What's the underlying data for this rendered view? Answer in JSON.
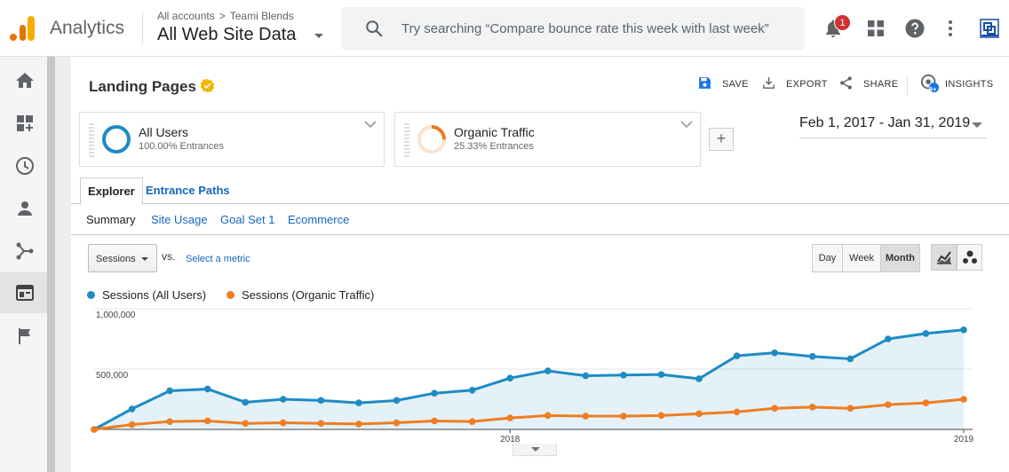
{
  "topbar": {
    "app_name": "Analytics",
    "breadcrumb": [
      "All accounts",
      "Teami Blends"
    ],
    "breadcrumb_sep": ">",
    "view_name": "All Web Site Data",
    "search_placeholder": "Try searching “Compare bounce rate this week with last week”",
    "notification_count": "1",
    "icons": [
      "search-icon",
      "bell-icon",
      "apps-grid-icon",
      "help-icon",
      "more-vert-icon",
      "account-icon"
    ],
    "brand_color": "#f9ab00"
  },
  "left_rail": {
    "items": [
      "home",
      "customization",
      "realtime",
      "audience",
      "acquisition",
      "behavior",
      "conversions"
    ],
    "active": "behavior"
  },
  "report": {
    "title": "Landing Pages",
    "actions": [
      {
        "label": "SAVE",
        "icon": "save-icon"
      },
      {
        "label": "EXPORT",
        "icon": "export-icon"
      },
      {
        "label": "SHARE",
        "icon": "share-icon"
      },
      {
        "label": "INSIGHTS",
        "icon": "insights-icon"
      }
    ],
    "insights_badge": "9+",
    "segments": [
      {
        "name": "All Users",
        "subtitle": "100.00% Entrances",
        "color": "#1e8bc3",
        "fraction": 1.0
      },
      {
        "name": "Organic Traffic",
        "subtitle": "25.33% Entrances",
        "color": "#ef7d22",
        "fraction": 0.2533
      }
    ],
    "add_segment_label": "+",
    "date_range": "Feb 1, 2017 - Jan 31, 2019",
    "tabs": [
      "Explorer",
      "Entrance Paths"
    ],
    "active_tab": "Explorer",
    "subtabs": [
      "Summary",
      "Site Usage",
      "Goal Set 1",
      "Ecommerce"
    ],
    "active_subtab": "Summary",
    "metric_selector": "Sessions",
    "vs_label": "vs.",
    "select_metric": "Select a metric",
    "granularity": [
      "Day",
      "Week",
      "Month"
    ],
    "active_granularity": "Month"
  },
  "chart_data": {
    "type": "line",
    "x": [
      "2017-02",
      "2017-03",
      "2017-04",
      "2017-05",
      "2017-06",
      "2017-07",
      "2017-08",
      "2017-09",
      "2017-10",
      "2017-11",
      "2017-12",
      "2018-01",
      "2018-02",
      "2018-03",
      "2018-04",
      "2018-05",
      "2018-06",
      "2018-07",
      "2018-08",
      "2018-09",
      "2018-10",
      "2018-11",
      "2018-12",
      "2019-01"
    ],
    "x_tick_labels": [
      {
        "at": "2018-01",
        "label": "2018"
      },
      {
        "at": "2019-01",
        "label": "2019"
      }
    ],
    "series": [
      {
        "name": "Sessions (All Users)",
        "color": "#1e8bc3",
        "fill": true,
        "values": [
          0,
          170000,
          320000,
          335000,
          225000,
          250000,
          240000,
          220000,
          240000,
          300000,
          325000,
          425000,
          485000,
          445000,
          450000,
          455000,
          420000,
          610000,
          635000,
          605000,
          585000,
          750000,
          795000,
          825000
        ]
      },
      {
        "name": "Sessions (Organic Traffic)",
        "color": "#ef7d22",
        "fill": false,
        "values": [
          0,
          40000,
          65000,
          70000,
          50000,
          55000,
          50000,
          45000,
          55000,
          70000,
          65000,
          95000,
          115000,
          110000,
          110000,
          115000,
          130000,
          145000,
          175000,
          185000,
          175000,
          205000,
          220000,
          250000
        ]
      }
    ],
    "y_ticks": [
      {
        "value": 500000,
        "label": "500,000"
      },
      {
        "value": 1000000,
        "label": "1,000,000"
      }
    ],
    "ylim": [
      0,
      1000000
    ],
    "grid": true,
    "legend": "top-left"
  }
}
